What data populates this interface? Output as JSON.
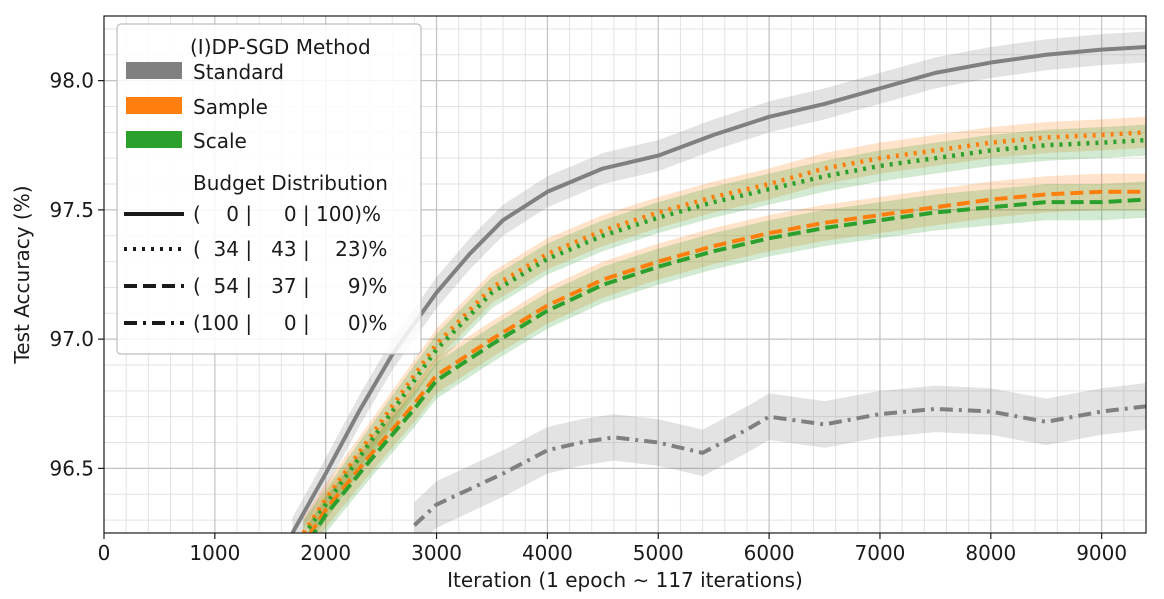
{
  "chart_data": {
    "type": "line",
    "xlabel": "Iteration (1 epoch ∼ 117 iterations)",
    "ylabel": "Test Accuracy (%)",
    "xlim": [
      0,
      9400
    ],
    "ylim": [
      96.25,
      98.25
    ],
    "xticks": [
      0,
      1000,
      2000,
      3000,
      4000,
      5000,
      6000,
      7000,
      8000,
      9000
    ],
    "xtick_labels": [
      "0",
      "1000",
      "2000",
      "3000",
      "4000",
      "5000",
      "6000",
      "7000",
      "8000",
      "9000"
    ],
    "yticks": [
      96.5,
      97.0,
      97.5,
      98.0
    ],
    "ytick_labels": [
      "96.5",
      "97.0",
      "97.5",
      "98.0"
    ],
    "grid": true,
    "legend": {
      "placement": "top-left",
      "method_title": "(I)DP-SGD Method",
      "methods": [
        {
          "label": "Standard",
          "color": "#808080"
        },
        {
          "label": "Sample",
          "color": "#ff7f0e"
        },
        {
          "label": "Scale",
          "color": "#2ca02c"
        }
      ],
      "budget_title": "Budget Distribution",
      "budgets": [
        {
          "label": "(    0 |     0 | 100)%",
          "style": "solid"
        },
        {
          "label": "(  34 |   43 |    23)%",
          "style": "dotted"
        },
        {
          "label": "(  54 |   37 |      9)%",
          "style": "dashed"
        },
        {
          "label": "(100 |     0 |      0)%",
          "style": "dashdot"
        }
      ]
    },
    "series": [
      {
        "method": "Standard",
        "budget": "(0|0|100)%",
        "color": "#808080",
        "style": "solid",
        "x": [
          1700,
          2000,
          2300,
          2600,
          3000,
          3300,
          3600,
          4000,
          4500,
          5000,
          5500,
          6000,
          6500,
          7000,
          7500,
          8000,
          8500,
          9000,
          9400
        ],
        "y": [
          96.25,
          96.48,
          96.72,
          96.94,
          97.18,
          97.33,
          97.46,
          97.57,
          97.66,
          97.71,
          97.79,
          97.86,
          97.91,
          97.97,
          98.03,
          98.07,
          98.1,
          98.12,
          98.13
        ],
        "band": 0.06
      },
      {
        "method": "Sample",
        "budget": "(34|43|23)%",
        "color": "#ff7f0e",
        "style": "dotted",
        "x": [
          1800,
          2000,
          2400,
          2800,
          3000,
          3500,
          4000,
          4500,
          5000,
          5500,
          6000,
          6500,
          7000,
          7500,
          8000,
          8500,
          9000,
          9400
        ],
        "y": [
          96.25,
          96.38,
          96.62,
          96.86,
          96.98,
          97.2,
          97.33,
          97.42,
          97.49,
          97.55,
          97.6,
          97.66,
          97.7,
          97.73,
          97.76,
          97.78,
          97.79,
          97.8
        ],
        "band": 0.06
      },
      {
        "method": "Scale",
        "budget": "(34|43|23)%",
        "color": "#2ca02c",
        "style": "dotted",
        "x": [
          1800,
          2000,
          2400,
          2800,
          3000,
          3500,
          4000,
          4500,
          5000,
          5500,
          6000,
          6500,
          7000,
          7500,
          8000,
          8500,
          9000,
          9400
        ],
        "y": [
          96.24,
          96.36,
          96.6,
          96.84,
          96.96,
          97.18,
          97.31,
          97.4,
          97.47,
          97.53,
          97.58,
          97.63,
          97.67,
          97.7,
          97.73,
          97.75,
          97.76,
          97.77
        ],
        "band": 0.06
      },
      {
        "method": "Sample",
        "budget": "(54|37|9)%",
        "color": "#ff7f0e",
        "style": "dashed",
        "x": [
          1850,
          2000,
          2400,
          2800,
          3000,
          3500,
          4000,
          4500,
          5000,
          5500,
          6000,
          6500,
          7000,
          7500,
          8000,
          8500,
          9000,
          9400
        ],
        "y": [
          96.24,
          96.34,
          96.55,
          96.75,
          96.86,
          97.0,
          97.13,
          97.23,
          97.3,
          97.36,
          97.41,
          97.45,
          97.48,
          97.51,
          97.54,
          97.56,
          97.57,
          97.57
        ],
        "band": 0.07
      },
      {
        "method": "Scale",
        "budget": "(54|37|9)%",
        "color": "#2ca02c",
        "style": "dashed",
        "x": [
          1850,
          2000,
          2400,
          2800,
          3000,
          3500,
          4000,
          4500,
          5000,
          5500,
          6000,
          6500,
          7000,
          7500,
          8000,
          8500,
          9000,
          9400
        ],
        "y": [
          96.22,
          96.32,
          96.53,
          96.73,
          96.84,
          96.98,
          97.11,
          97.21,
          97.28,
          97.34,
          97.39,
          97.43,
          97.46,
          97.49,
          97.51,
          97.53,
          97.53,
          97.54
        ],
        "band": 0.07
      },
      {
        "method": "Standard",
        "budget": "(100|0|0)%",
        "color": "#808080",
        "style": "dashdot",
        "x": [
          2800,
          3000,
          3300,
          3600,
          4000,
          4300,
          4600,
          5000,
          5400,
          5800,
          6000,
          6500,
          7000,
          7500,
          8000,
          8500,
          9000,
          9400
        ],
        "y": [
          96.28,
          96.36,
          96.42,
          96.48,
          96.57,
          96.6,
          96.62,
          96.6,
          96.56,
          96.65,
          96.7,
          96.67,
          96.71,
          96.73,
          96.72,
          96.68,
          96.72,
          96.74
        ],
        "band": 0.09
      }
    ]
  }
}
